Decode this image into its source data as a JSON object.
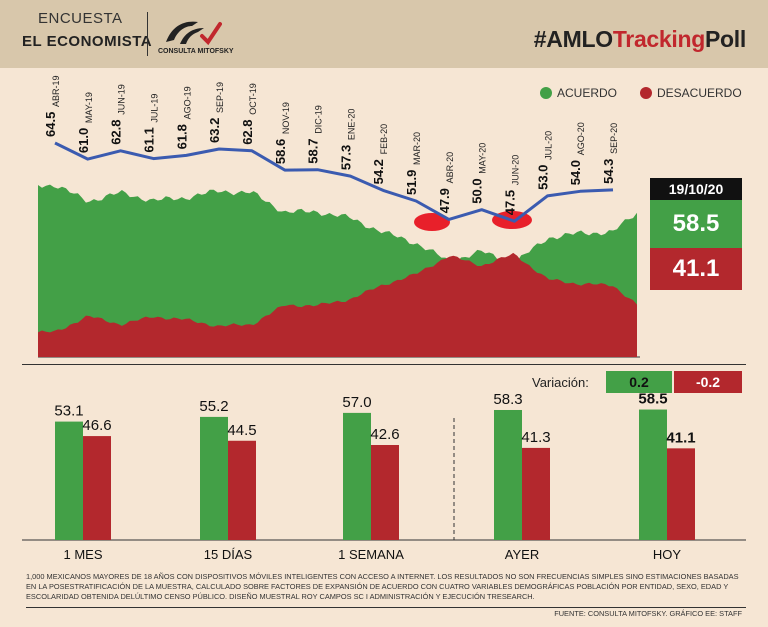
{
  "header": {
    "brand_line1": "ENCUESTA",
    "brand_line2": "EL ECONOMISTA",
    "logo_text": "CONSULTA MITOFSKY",
    "hashtag_prefix": "#AMLO",
    "hashtag_mid": "Tracking",
    "hashtag_suffix": "Poll"
  },
  "legend": {
    "acuerdo": "ACUERDO",
    "desacuerdo": "DESACUERDO"
  },
  "colors": {
    "acuerdo": "#43a047",
    "desacuerdo": "#b3282d",
    "line": "#3b5bb0",
    "background": "#f6e6d4"
  },
  "current": {
    "date": "19/10/20",
    "acuerdo": "58.5",
    "desacuerdo": "41.1"
  },
  "variation": {
    "label": "Variación:",
    "acuerdo": "0.2",
    "desacuerdo": "-0.2"
  },
  "chart_data": [
    {
      "type": "line",
      "series": [
        {
          "name": "ACUERDO",
          "points": [
            {
              "label": "ABR-19",
              "value": 64.5
            },
            {
              "label": "MAY-19",
              "value": 61.0
            },
            {
              "label": "JUN-19",
              "value": 62.8
            },
            {
              "label": "JUL-19",
              "value": 61.1
            },
            {
              "label": "AGO-19",
              "value": 61.8
            },
            {
              "label": "SEP-19",
              "value": 63.2
            },
            {
              "label": "OCT-19",
              "value": 62.8
            },
            {
              "label": "NOV-19",
              "value": 58.6
            },
            {
              "label": "DIC-19",
              "value": 58.7
            },
            {
              "label": "ENE-20",
              "value": 57.3
            },
            {
              "label": "FEB-20",
              "value": 54.2
            },
            {
              "label": "MAR-20",
              "value": 51.9
            },
            {
              "label": "ABR-20",
              "value": 47.9
            },
            {
              "label": "MAY-20",
              "value": 50.0
            },
            {
              "label": "JUN-20",
              "value": 47.5
            },
            {
              "label": "JUL-20",
              "value": 53.0
            },
            {
              "label": "AGO-20",
              "value": 54.0
            },
            {
              "label": "SEP-20",
              "value": 54.3
            }
          ]
        }
      ]
    },
    {
      "type": "bar",
      "categories": [
        "1 MES",
        "15 DÍAS",
        "1 SEMANA",
        "AYER",
        "HOY"
      ],
      "series": [
        {
          "name": "ACUERDO",
          "values": [
            53.1,
            55.2,
            57.0,
            58.3,
            58.5
          ]
        },
        {
          "name": "DESACUERDO",
          "values": [
            46.6,
            44.5,
            42.6,
            41.3,
            41.1
          ]
        }
      ]
    }
  ],
  "footnote": "1,000 mexicanos mayores de 18 años con dispositivos móviles inteligentes con acceso a internet. Los resultados no son frecuencias simples sino estimaciones basadas en la posestratificación de la muestra, calculado sobre factores de expansión de acuerdo con cuatro variables demográficas población por entidad, sexo, edad y escolaridad obtenida delúltimo censo público. Diseño muestral Roy Campos SC I Administración y ejecución Tresearch.",
  "source": "FUENTE: CONSULTA MITOFSKY. GRÁFICO EE: STAFF"
}
